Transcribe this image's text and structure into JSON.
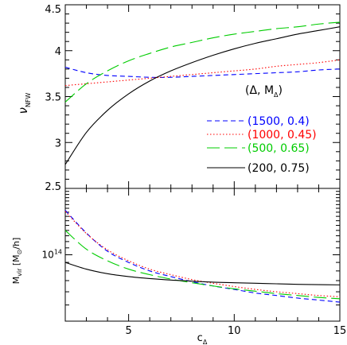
{
  "chart_data": [
    {
      "type": "line",
      "panel": "top",
      "ylabel_main": "ν",
      "ylabel_sub": "NFW",
      "ylim": [
        2.5,
        4.5
      ],
      "xlim": [
        2,
        15
      ],
      "y_ticks_major": [
        2.5,
        3,
        3.5,
        4,
        4.5
      ],
      "y_tick_labels": [
        "2.5",
        "3",
        "3.5",
        "4",
        "4.5"
      ],
      "legend_placement": "bottom-right",
      "legend_title": "(Δ, M",
      "legend_title_sub": "Δ",
      "legend_title_close": ")",
      "series": [
        {
          "name": "(1500, 0.4)",
          "color": "#0000ff",
          "dash": "short",
          "x": [
            2,
            3,
            4,
            5,
            6,
            7,
            8,
            9,
            10,
            11,
            12,
            13,
            14,
            15
          ],
          "y": [
            3.82,
            3.76,
            3.73,
            3.72,
            3.71,
            3.71,
            3.72,
            3.73,
            3.74,
            3.75,
            3.76,
            3.77,
            3.79,
            3.8
          ]
        },
        {
          "name": "(1000, 0.45)",
          "color": "#ff0000",
          "dash": "dot",
          "x": [
            2,
            3,
            4,
            5,
            6,
            7,
            8,
            9,
            10,
            11,
            12,
            13,
            14,
            15
          ],
          "y": [
            3.62,
            3.64,
            3.66,
            3.68,
            3.7,
            3.72,
            3.74,
            3.76,
            3.78,
            3.8,
            3.83,
            3.85,
            3.87,
            3.9
          ]
        },
        {
          "name": "(500, 0.65)",
          "color": "#00cc00",
          "dash": "long",
          "x": [
            2,
            3,
            4,
            5,
            6,
            7,
            8,
            9,
            10,
            11,
            12,
            13,
            14,
            15
          ],
          "y": [
            3.44,
            3.64,
            3.78,
            3.89,
            3.97,
            4.04,
            4.09,
            4.14,
            4.18,
            4.21,
            4.24,
            4.26,
            4.29,
            4.31
          ]
        },
        {
          "name": "(200, 0.75)",
          "color": "#000000",
          "dash": "solid",
          "x": [
            2,
            3,
            4,
            5,
            6,
            7,
            8,
            9,
            10,
            11,
            12,
            13,
            14,
            15
          ],
          "y": [
            2.76,
            3.11,
            3.35,
            3.53,
            3.67,
            3.78,
            3.87,
            3.95,
            4.02,
            4.08,
            4.13,
            4.18,
            4.22,
            4.26
          ]
        }
      ]
    },
    {
      "type": "line",
      "panel": "bottom",
      "ylabel_main": "M",
      "ylabel_sub": "vir",
      "ylabel_unit_open": " [M",
      "ylabel_unit_sub": "⊙",
      "ylabel_unit_close": "/h]",
      "xlabel_main": "c",
      "xlabel_sub": "Δ",
      "y_scale": "log",
      "ylim": [
        40000000000000,
        250000000000000
      ],
      "xlim": [
        2,
        15
      ],
      "x_ticks": [
        5,
        10,
        15
      ],
      "x_tick_labels": [
        "5",
        "10",
        "15"
      ],
      "y_tick_label_base": "10",
      "y_tick_label_exp": "14",
      "y_tick_label_value": 100000000000000,
      "series": [
        {
          "color": "#0000ff",
          "dash": "short",
          "x": [
            2,
            3,
            4,
            5,
            6,
            7,
            8,
            9,
            10,
            11,
            12,
            13,
            14,
            15
          ],
          "y": [
            185000000000000,
            135000000000000,
            105000000000000,
            90000000000000,
            80000000000000,
            74000000000000,
            69000000000000,
            65000000000000,
            62000000000000,
            59000000000000,
            57000000000000,
            55000000000000,
            53500000000000,
            52000000000000
          ]
        },
        {
          "color": "#ff0000",
          "dash": "dot",
          "x": [
            2,
            3,
            4,
            5,
            6,
            7,
            8,
            9,
            10,
            11,
            12,
            13,
            14,
            15
          ],
          "y": [
            182000000000000,
            134000000000000,
            107000000000000,
            92000000000000,
            82000000000000,
            76000000000000,
            71000000000000,
            67500000000000,
            64500000000000,
            62000000000000,
            60000000000000,
            58500000000000,
            57000000000000,
            56000000000000
          ]
        },
        {
          "color": "#00cc00",
          "dash": "long",
          "x": [
            2,
            3,
            4,
            5,
            6,
            7,
            8,
            9,
            10,
            11,
            12,
            13,
            14,
            15
          ],
          "y": [
            140000000000000,
            108000000000000,
            92000000000000,
            82000000000000,
            76000000000000,
            71500000000000,
            68000000000000,
            65000000000000,
            62500000000000,
            60500000000000,
            58500000000000,
            57000000000000,
            55500000000000,
            54500000000000
          ]
        },
        {
          "color": "#000000",
          "dash": "solid",
          "x": [
            2,
            3,
            4,
            5,
            6,
            7,
            8,
            9,
            10,
            11,
            12,
            13,
            14,
            15
          ],
          "y": [
            90000000000000,
            82000000000000,
            77000000000000,
            74000000000000,
            72000000000000,
            70500000000000,
            69500000000000,
            68500000000000,
            68000000000000,
            67500000000000,
            67000000000000,
            66500000000000,
            66200000000000,
            66000000000000
          ]
        }
      ]
    }
  ]
}
